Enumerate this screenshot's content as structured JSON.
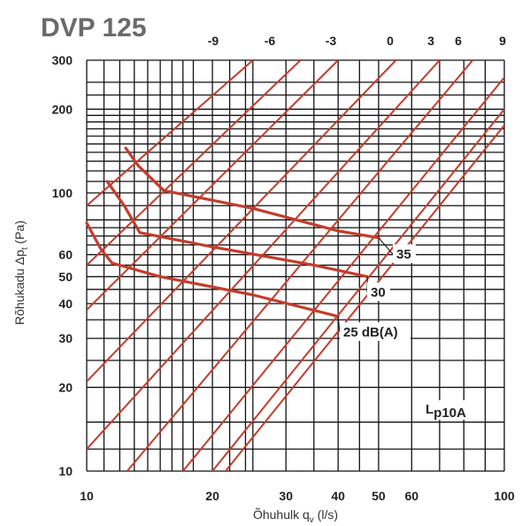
{
  "chart_data": {
    "type": "line",
    "title": "DVP 125",
    "xlabel": "Õhuhulk q",
    "xlabel_sub": "v",
    "xlabel_unit": " (l/s)",
    "ylabel": "Rõhukadu Δp",
    "ylabel_sub": "t",
    "ylabel_unit": " (Pa)",
    "xscale": "log",
    "yscale": "log",
    "xlim": [
      10,
      100
    ],
    "ylim": [
      10,
      300
    ],
    "x_ticks": [
      10,
      20,
      30,
      40,
      50,
      60,
      100
    ],
    "x_tick_labels": [
      "10",
      "20",
      "30",
      "40",
      "50",
      "60",
      "100"
    ],
    "y_ticks": [
      10,
      20,
      30,
      40,
      50,
      60,
      100,
      200,
      300
    ],
    "y_tick_labels": [
      "10",
      "20",
      "30",
      "40",
      "50",
      "60",
      "100",
      "200",
      "300"
    ],
    "x_grid": [
      10,
      11,
      12,
      13,
      14,
      15,
      16,
      17,
      18,
      20,
      22,
      24,
      25,
      30,
      35,
      40,
      45,
      50,
      60,
      70,
      80,
      90,
      100
    ],
    "y_grid": [
      10,
      12,
      15,
      20,
      25,
      30,
      35,
      40,
      45,
      50,
      55,
      60,
      65,
      70,
      75,
      80,
      90,
      100,
      110,
      120,
      130,
      140,
      150,
      160,
      170,
      180,
      190,
      200,
      225,
      250,
      300
    ],
    "grid": true,
    "diagonal_labels": [
      "-9",
      "-6",
      "-3",
      "0",
      "3",
      "6",
      "9"
    ],
    "diagonal_lines": [
      {
        "points": [
          [
            10,
            90
          ],
          [
            25,
            300
          ]
        ]
      },
      {
        "points": [
          [
            10,
            55
          ],
          [
            32.5,
            300
          ]
        ]
      },
      {
        "points": [
          [
            10,
            38
          ],
          [
            40,
            300
          ]
        ]
      },
      {
        "points": [
          [
            10,
            21
          ],
          [
            55,
            300
          ]
        ]
      },
      {
        "points": [
          [
            10,
            12
          ],
          [
            70,
            300
          ]
        ]
      },
      {
        "points": [
          [
            12.5,
            10
          ],
          [
            84,
            300
          ]
        ]
      },
      {
        "points": [
          [
            17,
            10
          ],
          [
            100,
            260
          ]
        ]
      },
      {
        "points": [
          [
            20,
            10
          ],
          [
            100,
            200
          ]
        ]
      },
      {
        "points": [
          [
            21.5,
            10
          ],
          [
            100,
            175
          ]
        ]
      }
    ],
    "series": [
      {
        "label": "35",
        "points": [
          [
            12.4,
            145
          ],
          [
            13.3,
            125
          ],
          [
            15.3,
            102
          ],
          [
            25,
            88
          ],
          [
            40,
            73
          ],
          [
            50,
            69
          ]
        ]
      },
      {
        "label": "30",
        "points": [
          [
            11.2,
            110
          ],
          [
            12.3,
            90
          ],
          [
            13.4,
            72
          ],
          [
            20,
            64
          ],
          [
            35,
            55
          ],
          [
            47,
            50
          ]
        ]
      },
      {
        "label": "25 dB(A)",
        "points": [
          [
            10,
            78
          ],
          [
            10.8,
            63
          ],
          [
            11.5,
            56
          ],
          [
            15,
            50
          ],
          [
            25,
            43
          ],
          [
            40,
            36
          ]
        ]
      }
    ],
    "series_color": "#c43c2c",
    "legend_text": "L",
    "legend_sub": "p10A"
  }
}
